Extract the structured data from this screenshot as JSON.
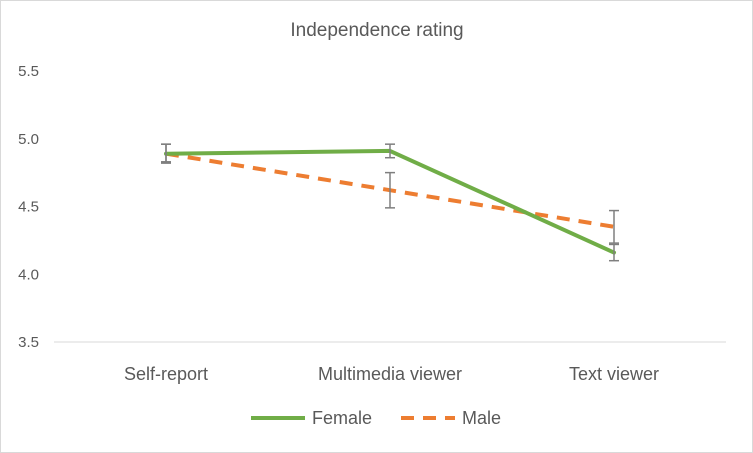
{
  "chart_data": {
    "type": "line",
    "title": "Independence rating",
    "xlabel": "",
    "ylabel": "",
    "categories": [
      "Self-report",
      "Multimedia viewer",
      "Text viewer"
    ],
    "ylim": [
      3.5,
      5.5
    ],
    "yticks": [
      "3.5",
      "4.0",
      "4.5",
      "5.0",
      "5.5"
    ],
    "ytick_values": [
      3.5,
      4.0,
      4.5,
      5.0,
      5.5
    ],
    "grid": false,
    "legend_position": "bottom",
    "series": [
      {
        "name": "Female",
        "values": [
          4.89,
          4.91,
          4.16
        ],
        "error_low": [
          4.83,
          4.86,
          4.1
        ],
        "error_high": [
          4.96,
          4.96,
          4.22
        ],
        "color": "#70AD47",
        "dashed": false
      },
      {
        "name": "Male",
        "values": [
          4.89,
          4.62,
          4.35
        ],
        "error_low": [
          4.82,
          4.49,
          4.23
        ],
        "error_high": [
          4.96,
          4.75,
          4.47
        ],
        "color": "#ED7D31",
        "dashed": true
      }
    ]
  }
}
